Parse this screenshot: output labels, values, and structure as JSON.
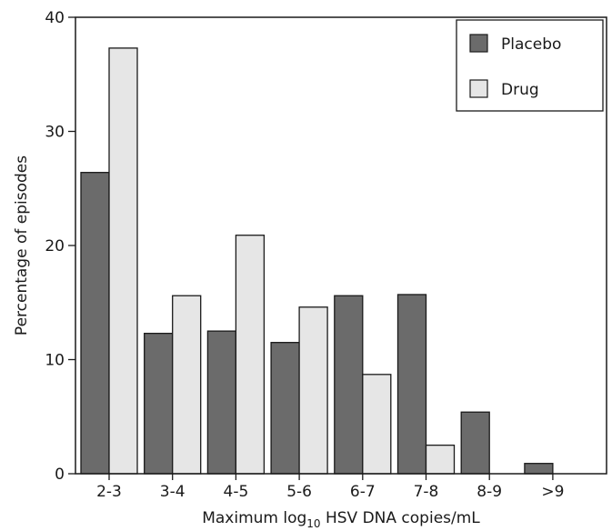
{
  "chart_data": {
    "type": "bar",
    "xlabel_main": "Maximum log",
    "xlabel_sub": "10",
    "xlabel_rest": " HSV DNA copies/mL",
    "ylabel": "Percentage of episodes",
    "ylim": [
      0,
      40
    ],
    "yticks": [
      "0",
      "10",
      "20",
      "30",
      "40"
    ],
    "categories": [
      "2-3",
      "3-4",
      "4-5",
      "5-6",
      "6-7",
      "7-8",
      "8-9",
      ">9"
    ],
    "series": [
      {
        "name": "Placebo",
        "color": "#6b6b6b",
        "values": [
          26.4,
          12.3,
          12.5,
          11.5,
          15.6,
          15.7,
          5.4,
          0.9
        ]
      },
      {
        "name": "Drug",
        "color": "#e6e6e6",
        "values": [
          37.3,
          15.6,
          20.9,
          14.6,
          8.7,
          2.5,
          0,
          0
        ]
      }
    ],
    "grid": false,
    "legend_position": "top-right"
  }
}
